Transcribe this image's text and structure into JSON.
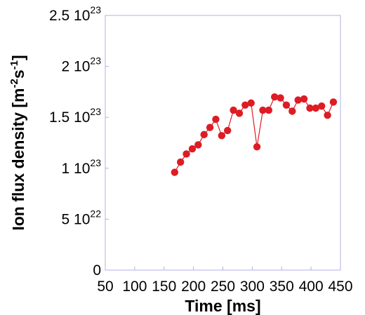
{
  "chart_data": {
    "type": "line",
    "title": "",
    "xlabel": "Time [ms]",
    "ylabel_parts": {
      "prefix": "Ion flux density [m",
      "exp1": "-2",
      "mid": "s",
      "exp2": "-1",
      "suffix": "]"
    },
    "xlim": [
      50,
      450
    ],
    "ylim": [
      0,
      2.5e+23
    ],
    "grid": false,
    "x_ticks": [
      {
        "value": 50,
        "label": "50"
      },
      {
        "value": 100,
        "label": "100"
      },
      {
        "value": 150,
        "label": "150"
      },
      {
        "value": 200,
        "label": "200"
      },
      {
        "value": 250,
        "label": "250"
      },
      {
        "value": 300,
        "label": "300"
      },
      {
        "value": 350,
        "label": "350"
      },
      {
        "value": 400,
        "label": "400"
      },
      {
        "value": 450,
        "label": "450"
      }
    ],
    "y_ticks": [
      {
        "value": 0,
        "mantissa": "0",
        "exponent": ""
      },
      {
        "value": 5e+22,
        "mantissa": "5 10",
        "exponent": "22"
      },
      {
        "value": 1e+23,
        "mantissa": "1 10",
        "exponent": "23"
      },
      {
        "value": 1.5e+23,
        "mantissa": "1.5 10",
        "exponent": "23"
      },
      {
        "value": 2e+23,
        "mantissa": "2 10",
        "exponent": "23"
      },
      {
        "value": 2.5e+23,
        "mantissa": "2.5 10",
        "exponent": "23"
      }
    ],
    "series": [
      {
        "color": "#dd1c24",
        "x": [
          168,
          178,
          188,
          198,
          208,
          218,
          228,
          238,
          248,
          258,
          268,
          278,
          288,
          298,
          308,
          318,
          328,
          338,
          348,
          358,
          368,
          378,
          388,
          398,
          408,
          418,
          428,
          438
        ],
        "y": [
          9.6e+22,
          1.06e+23,
          1.14e+23,
          1.19e+23,
          1.23e+23,
          1.33e+23,
          1.4e+23,
          1.48e+23,
          1.32e+23,
          1.37e+23,
          1.57e+23,
          1.54e+23,
          1.62e+23,
          1.64e+23,
          1.21e+23,
          1.57e+23,
          1.57e+23,
          1.7e+23,
          1.69e+23,
          1.62e+23,
          1.56e+23,
          1.67e+23,
          1.68e+23,
          1.59e+23,
          1.59e+23,
          1.61e+23,
          1.52e+23,
          1.65e+23
        ]
      }
    ]
  }
}
